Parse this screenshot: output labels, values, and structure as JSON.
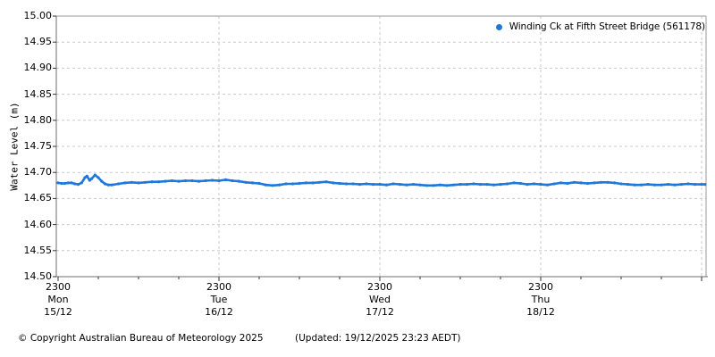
{
  "figure": {
    "colors": {
      "series": "#1e78dc",
      "grid": "#c9c9c9",
      "frame": "#9a9a9a",
      "axis": "#6e6e6e",
      "tick": "#333333",
      "text": "#000000",
      "background": "#ffffff"
    }
  },
  "chart_data": {
    "type": "scatter",
    "title": "",
    "xlabel": "",
    "ylabel": "Water Level (m)",
    "ylim": [
      14.5,
      15.0
    ],
    "ytick_step": 0.05,
    "yticks": [
      15.0,
      14.95,
      14.9,
      14.85,
      14.8,
      14.75,
      14.7,
      14.65,
      14.6,
      14.55,
      14.5
    ],
    "ytick_labels": [
      "15.00",
      "14.95",
      "14.90",
      "14.85",
      "14.80",
      "14.75",
      "14.70",
      "14.65",
      "14.60",
      "14.55",
      "14.50"
    ],
    "grid": true,
    "legend_position": "top-right",
    "x_axis": {
      "unit": "hours since Mon 15/12 23:00",
      "xlim": [
        0,
        96.5
      ],
      "major_hours": [
        0,
        24,
        48,
        72,
        96
      ],
      "minor_step_hours": 6,
      "major_labels": [
        {
          "time": "2300",
          "day": "Mon",
          "date": "15/12"
        },
        {
          "time": "2300",
          "day": "Tue",
          "date": "16/12"
        },
        {
          "time": "2300",
          "day": "Wed",
          "date": "17/12"
        },
        {
          "time": "2300",
          "day": "Thu",
          "date": "18/12"
        },
        {
          "time": "",
          "day": "",
          "date": ""
        }
      ]
    },
    "series": [
      {
        "name": "Winding Ck at Fifth Street Bridge (561178)",
        "station_id": "561178",
        "color": "#1e78dc",
        "marker": "dot",
        "points": [
          [
            0,
            14.68
          ],
          [
            0.5,
            14.679
          ],
          [
            1,
            14.679
          ],
          [
            1.5,
            14.68
          ],
          [
            2,
            14.68
          ],
          [
            2.5,
            14.678
          ],
          [
            3,
            14.677
          ],
          [
            3.5,
            14.68
          ],
          [
            4,
            14.69
          ],
          [
            4.3,
            14.693
          ],
          [
            4.7,
            14.685
          ],
          [
            5,
            14.688
          ],
          [
            5.5,
            14.695
          ],
          [
            6,
            14.69
          ],
          [
            6.5,
            14.683
          ],
          [
            7,
            14.678
          ],
          [
            7.5,
            14.676
          ],
          [
            8,
            14.676
          ],
          [
            9,
            14.678
          ],
          [
            10,
            14.68
          ],
          [
            11,
            14.681
          ],
          [
            12,
            14.68
          ],
          [
            13,
            14.681
          ],
          [
            14,
            14.682
          ],
          [
            15,
            14.682
          ],
          [
            16,
            14.683
          ],
          [
            17,
            14.684
          ],
          [
            18,
            14.683
          ],
          [
            19,
            14.684
          ],
          [
            20,
            14.684
          ],
          [
            21,
            14.683
          ],
          [
            22,
            14.684
          ],
          [
            23,
            14.685
          ],
          [
            24,
            14.684
          ],
          [
            25,
            14.686
          ],
          [
            26,
            14.684
          ],
          [
            27,
            14.683
          ],
          [
            28,
            14.681
          ],
          [
            29,
            14.68
          ],
          [
            30,
            14.679
          ],
          [
            31,
            14.676
          ],
          [
            32,
            14.675
          ],
          [
            33,
            14.676
          ],
          [
            34,
            14.678
          ],
          [
            35,
            14.678
          ],
          [
            36,
            14.679
          ],
          [
            37,
            14.68
          ],
          [
            38,
            14.68
          ],
          [
            39,
            14.681
          ],
          [
            40,
            14.682
          ],
          [
            41,
            14.68
          ],
          [
            42,
            14.679
          ],
          [
            43,
            14.678
          ],
          [
            44,
            14.678
          ],
          [
            45,
            14.677
          ],
          [
            46,
            14.678
          ],
          [
            47,
            14.677
          ],
          [
            48,
            14.677
          ],
          [
            49,
            14.676
          ],
          [
            50,
            14.678
          ],
          [
            51,
            14.677
          ],
          [
            52,
            14.676
          ],
          [
            53,
            14.677
          ],
          [
            54,
            14.676
          ],
          [
            55,
            14.675
          ],
          [
            56,
            14.675
          ],
          [
            57,
            14.676
          ],
          [
            58,
            14.675
          ],
          [
            59,
            14.676
          ],
          [
            60,
            14.677
          ],
          [
            61,
            14.677
          ],
          [
            62,
            14.678
          ],
          [
            63,
            14.677
          ],
          [
            64,
            14.677
          ],
          [
            65,
            14.676
          ],
          [
            66,
            14.677
          ],
          [
            67,
            14.678
          ],
          [
            68,
            14.68
          ],
          [
            69,
            14.679
          ],
          [
            70,
            14.677
          ],
          [
            71,
            14.678
          ],
          [
            72,
            14.677
          ],
          [
            73,
            14.676
          ],
          [
            74,
            14.678
          ],
          [
            75,
            14.68
          ],
          [
            76,
            14.679
          ],
          [
            77,
            14.681
          ],
          [
            78,
            14.68
          ],
          [
            79,
            14.679
          ],
          [
            80,
            14.68
          ],
          [
            81,
            14.681
          ],
          [
            82,
            14.681
          ],
          [
            83,
            14.68
          ],
          [
            84,
            14.678
          ],
          [
            85,
            14.677
          ],
          [
            86,
            14.676
          ],
          [
            87,
            14.676
          ],
          [
            88,
            14.677
          ],
          [
            89,
            14.676
          ],
          [
            90,
            14.676
          ],
          [
            91,
            14.677
          ],
          [
            92,
            14.676
          ],
          [
            93,
            14.677
          ],
          [
            94,
            14.678
          ],
          [
            95,
            14.677
          ],
          [
            96,
            14.677
          ],
          [
            96.5,
            14.677
          ]
        ]
      }
    ]
  },
  "footer": {
    "copyright": "© Copyright Australian Bureau of Meteorology 2025",
    "updated": "(Updated: 19/12/2025 23:23 AEDT)"
  }
}
